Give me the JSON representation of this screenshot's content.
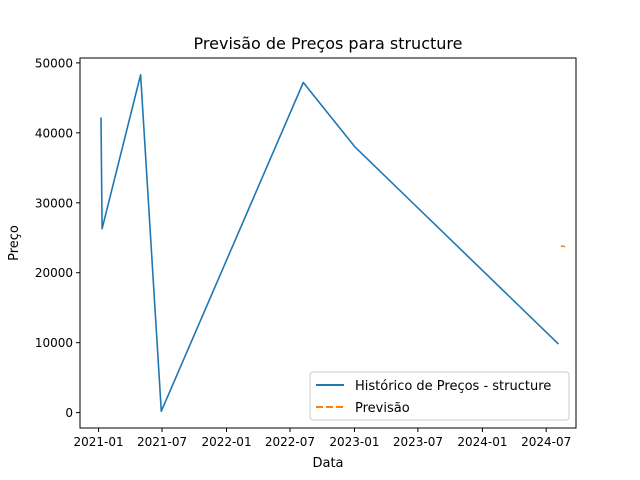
{
  "chart_data": {
    "type": "line",
    "title": "Previsão de Preços para structure",
    "xlabel": "Data",
    "ylabel": "Preço",
    "x_ticks": [
      "2021-01",
      "2021-07",
      "2022-01",
      "2022-07",
      "2023-01",
      "2023-07",
      "2024-01",
      "2024-07"
    ],
    "y_ticks": [
      0,
      10000,
      20000,
      30000,
      40000,
      50000
    ],
    "xlim": [
      "2020-11-09",
      "2024-09-24"
    ],
    "ylim": [
      -2200,
      50700
    ],
    "grid": false,
    "legend_position": "lower right",
    "series": [
      {
        "name": "Histórico de Preços - structure",
        "color": "#1f77b4",
        "style": "solid",
        "points": [
          {
            "x": "2021-01-08",
            "y": 42200
          },
          {
            "x": "2021-01-11",
            "y": 26300
          },
          {
            "x": "2021-05-01",
            "y": 48300
          },
          {
            "x": "2021-06-29",
            "y": 200
          },
          {
            "x": "2022-08-08",
            "y": 47200
          },
          {
            "x": "2023-01-02",
            "y": 38000
          },
          {
            "x": "2024-08-05",
            "y": 9800
          }
        ]
      },
      {
        "name": "Previsão",
        "color": "#ff7f0e",
        "style": "dashed",
        "points": [
          {
            "x": "2024-08-12",
            "y": 23800
          },
          {
            "x": "2024-08-24",
            "y": 23750
          }
        ]
      }
    ]
  }
}
